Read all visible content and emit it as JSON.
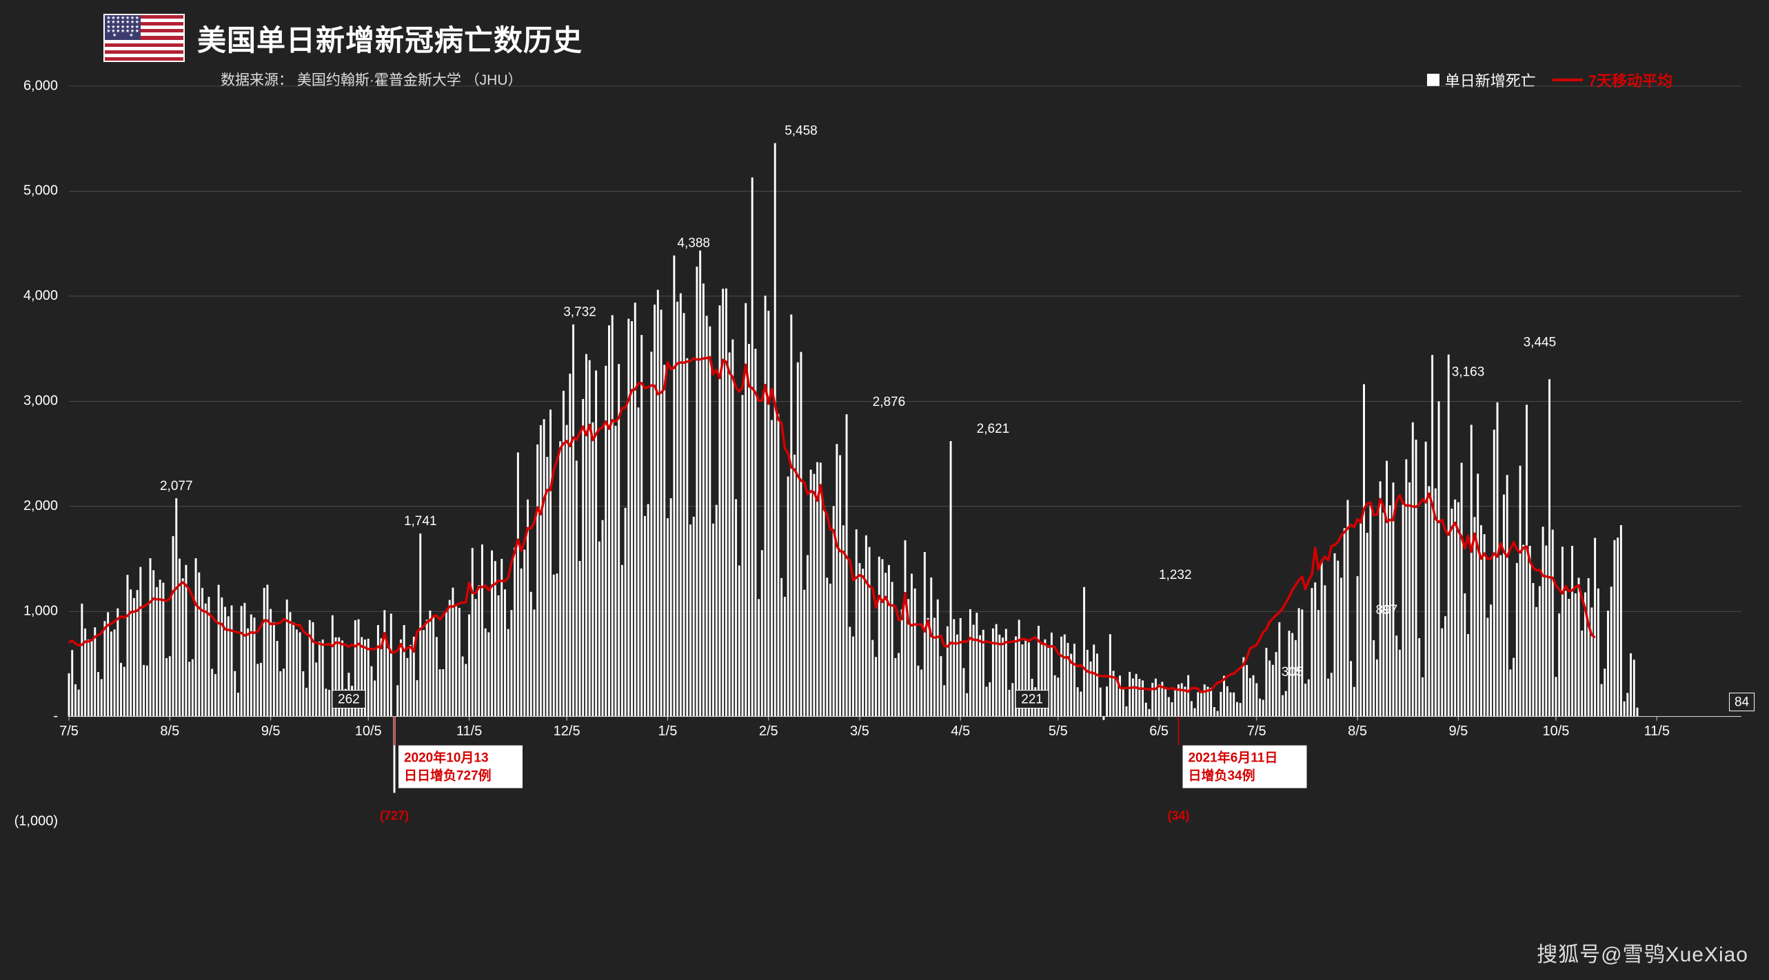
{
  "title": "美国单日新增新冠病亡数历史",
  "source_label": "数据来源：",
  "source_value": "美国约翰斯·霍普金斯大学 （JHU）",
  "legend": {
    "bar_label": "单日新增死亡",
    "line_label": "7天移动平均"
  },
  "chart": {
    "type": "bar+line",
    "background_color": "#222222",
    "bar_color": "#ffffff",
    "line_color": "#d40000",
    "line_width": 3.5,
    "grid_color": "#666666",
    "text_color": "#ffffff",
    "ylim": [
      -1000,
      6000
    ],
    "y_ticks": [
      -1000,
      0,
      1000,
      2000,
      3000,
      4000,
      5000,
      6000
    ],
    "y_tick_labels": [
      "(1,000)",
      "-",
      "1,000",
      "2,000",
      "3,000",
      "4,000",
      "5,000",
      "6,000"
    ],
    "x_tick_indices": [
      0,
      31,
      62,
      92,
      123,
      153,
      184,
      215,
      243,
      274,
      304,
      335,
      365,
      396,
      427,
      457,
      488
    ],
    "x_tick_labels": [
      "7/5",
      "8/5",
      "9/5",
      "10/5",
      "11/5",
      "12/5",
      "1/5",
      "2/5",
      "3/5",
      "4/5",
      "5/5",
      "6/5",
      "7/5",
      "8/5",
      "9/5",
      "10/5",
      "11/5"
    ],
    "n_points": 515,
    "peak_labels": [
      {
        "idx": 33,
        "value": 2077,
        "text": "2,077",
        "anchor": "above"
      },
      {
        "idx": 86,
        "value": 262,
        "text": "262",
        "anchor": "boxed-below"
      },
      {
        "idx": 108,
        "value": 1741,
        "text": "1,741",
        "anchor": "above"
      },
      {
        "idx": 157,
        "value": 3732,
        "text": "3,732",
        "anchor": "above"
      },
      {
        "idx": 192,
        "value": 4388,
        "text": "4,388",
        "anchor": "above"
      },
      {
        "idx": 225,
        "value": 5458,
        "text": "5,458",
        "anchor": "above"
      },
      {
        "idx": 252,
        "value": 2876,
        "text": "2,876",
        "anchor": "above"
      },
      {
        "idx": 284,
        "value": 2621,
        "text": "2,621",
        "anchor": "above"
      },
      {
        "idx": 296,
        "value": 221,
        "text": "221",
        "anchor": "boxed-below"
      },
      {
        "idx": 340,
        "value": 1232,
        "text": "1,232",
        "anchor": "above"
      },
      {
        "idx": 376,
        "value": 305,
        "text": "305",
        "anchor": "above-small"
      },
      {
        "idx": 405,
        "value": 897,
        "text": "897",
        "anchor": "above-small"
      },
      {
        "idx": 430,
        "value": 3163,
        "text": "3,163",
        "anchor": "above"
      },
      {
        "idx": 452,
        "value": 3445,
        "text": "3,445",
        "anchor": "above"
      },
      {
        "idx": 512,
        "value": 84,
        "text": "84",
        "anchor": "boxed-right"
      }
    ],
    "negative_labels": [
      {
        "idx": 100,
        "value": -727,
        "text": "(727)"
      },
      {
        "idx": 341,
        "value": -34,
        "text": "(34)"
      }
    ],
    "callouts": [
      {
        "idx": 100,
        "lines": [
          "2020年10月13",
          "日日增负727例"
        ]
      },
      {
        "idx": 341,
        "lines": [
          "2021年6月11日",
          "日增负34例"
        ]
      }
    ],
    "bars": [
      411,
      632,
      306,
      256,
      1074,
      837,
      732,
      737,
      848,
      423,
      355,
      908,
      992,
      808,
      828,
      1029,
      510,
      472,
      1348,
      1209,
      1127,
      1203,
      1423,
      490,
      485,
      1506,
      1392,
      1231,
      1302,
      1273,
      555,
      573,
      1717,
      2077,
      1502,
      1315,
      1442,
      520,
      545,
      1506,
      1371,
      1223,
      1075,
      1138,
      453,
      403,
      1253,
      1133,
      1043,
      953,
      1057,
      432,
      226,
      1051,
      1081,
      838,
      971,
      941,
      500,
      510,
      1224,
      1254,
      1023,
      897,
      719,
      430,
      455,
      1113,
      993,
      896,
      827,
      801,
      430,
      273,
      917,
      897,
      513,
      712,
      732,
      264,
      253,
      963,
      753,
      753,
      723,
      262,
      416,
      292,
      916,
      925,
      755,
      732,
      740,
      478,
      342,
      870,
      743,
      1012,
      649,
      979,
      -727,
      297,
      733,
      870,
      556,
      681,
      759,
      345,
      1741,
      822,
      921,
      1008,
      956,
      756,
      449,
      450,
      1002,
      1109,
      1226,
      1050,
      1033,
      571,
      500,
      972,
      1604,
      1118,
      1248,
      1637,
      838,
      801,
      1580,
      1479,
      1153,
      1500,
      1210,
      832,
      1013,
      1608,
      2513,
      1408,
      1588,
      2065,
      1186,
      1018,
      2589,
      2773,
      2830,
      2471,
      2921,
      1350,
      1361,
      2619,
      3100,
      2775,
      3263,
      3732,
      2435,
      1480,
      3022,
      3450,
      3392,
      2800,
      3293,
      1666,
      1869,
      3338,
      3723,
      3820,
      2767,
      3355,
      1442,
      1986,
      3786,
      3763,
      3939,
      2941,
      3631,
      1908,
      2022,
      3472,
      3920,
      4061,
      3872,
      3347,
      1887,
      2077,
      4388,
      3948,
      4028,
      3840,
      3410,
      1827,
      1901,
      4282,
      4435,
      4121,
      3814,
      3713,
      1836,
      2014,
      3913,
      4072,
      4074,
      3465,
      3589,
      2068,
      1437,
      3060,
      3935,
      3546,
      5131,
      3500,
      1117,
      1583,
      4006,
      3862,
      2821,
      5458,
      2879,
      1317,
      1139,
      2284,
      3826,
      2492,
      3371,
      3470,
      1206,
      1536,
      2349,
      2309,
      2421,
      2416,
      2003,
      1321,
      1264,
      2003,
      2593,
      2487,
      1819,
      2876,
      853,
      761,
      1781,
      1460,
      1406,
      1724,
      1613,
      728,
      566,
      1521,
      1497,
      1367,
      1441,
      1281,
      555,
      604,
      1020,
      1677,
      1117,
      1359,
      1218,
      484,
      446,
      1565,
      937,
      1323,
      939,
      1114,
      574,
      297,
      858,
      2621,
      926,
      780,
      936,
      460,
      221,
      1021,
      873,
      987,
      773,
      825,
      283,
      326,
      838,
      879,
      779,
      751,
      833,
      254,
      318,
      762,
      920,
      686,
      721,
      705,
      359,
      278,
      863,
      698,
      733,
      678,
      798,
      392,
      370,
      760,
      781,
      700,
      597,
      692,
      278,
      237,
      1232,
      634,
      523,
      684,
      598,
      275,
      -34,
      286,
      783,
      434,
      348,
      389,
      262,
      96,
      424,
      361,
      405,
      357,
      343,
      131,
      70,
      320,
      360,
      305,
      329,
      270,
      184,
      135,
      253,
      305,
      316,
      283,
      393,
      146,
      79,
      231,
      238,
      305,
      283,
      272,
      89,
      52,
      234,
      387,
      287,
      229,
      228,
      137,
      128,
      564,
      490,
      365,
      392,
      316,
      170,
      158,
      653,
      532,
      491,
      613,
      897,
      202,
      242,
      816,
      794,
      726,
      1031,
      1018,
      312,
      353,
      1222,
      1276,
      1013,
      1489,
      1248,
      360,
      415,
      1553,
      1483,
      1320,
      1792,
      2061,
      527,
      281,
      1335,
      1853,
      3163,
      1748,
      2009,
      726,
      543,
      2238,
      1941,
      2433,
      2009,
      2227,
      770,
      635,
      2016,
      2448,
      2228,
      2800,
      2635,
      745,
      372,
      2616,
      2192,
      3441,
      2171,
      2999,
      839,
      954,
      3445,
      1978,
      2065,
      2039,
      2415,
      1172,
      784,
      2776,
      1898,
      2311,
      1820,
      1735,
      939,
      1065,
      2730,
      2990,
      1535,
      2112,
      2299,
      447,
      558,
      1461,
      2387,
      1634,
      2967,
      1624,
      1270,
      1041,
      1240,
      1806,
      1627,
      3210,
      1778,
      376,
      980,
      1616,
      1196,
      1119,
      1624,
      1172,
      1320,
      818,
      1181,
      1316,
      1037,
      1700,
      1218,
      308,
      455,
      1007,
      1235,
      1679,
      1703,
      1821,
      143,
      224,
      601,
      540,
      84
    ],
    "moving_avg": [
      704,
      722,
      694,
      677,
      683,
      712,
      714,
      727,
      758,
      775,
      792,
      841,
      870,
      884,
      904,
      930,
      951,
      942,
      959,
      994,
      997,
      1007,
      1037,
      1046,
      1067,
      1088,
      1122,
      1115,
      1114,
      1108,
      1100,
      1122,
      1189,
      1220,
      1254,
      1276,
      1248,
      1209,
      1140,
      1063,
      1033,
      1007,
      997,
      974,
      950,
      907,
      887,
      880,
      829,
      824,
      817,
      807,
      800,
      794,
      770,
      782,
      801,
      795,
      810,
      864,
      915,
      913,
      880,
      881,
      887,
      891,
      926,
      911,
      896,
      882,
      869,
      870,
      812,
      784,
      770,
      715,
      698,
      694,
      685,
      683,
      689,
      669,
      703,
      702,
      687,
      683,
      664,
      684,
      667,
      692,
      666,
      657,
      641,
      643,
      642,
      666,
      650,
      793,
      677,
      609,
      611,
      628,
      689,
      623,
      653,
      662,
      618,
      806,
      831,
      857,
      901,
      914,
      955,
      961,
      922,
      964,
      1007,
      1047,
      1046,
      1060,
      1076,
      1084,
      1086,
      1273,
      1177,
      1173,
      1232,
      1232,
      1246,
      1200,
      1246,
      1261,
      1293,
      1290,
      1289,
      1319,
      1467,
      1565,
      1683,
      1578,
      1662,
      1794,
      1789,
      1844,
      1990,
      1924,
      2070,
      2156,
      2154,
      2347,
      2439,
      2552,
      2597,
      2621,
      2574,
      2657,
      2634,
      2697,
      2759,
      2677,
      2776,
      2631,
      2686,
      2738,
      2751,
      2808,
      2739,
      2820,
      2807,
      2843,
      2936,
      2936,
      3016,
      3107,
      3112,
      3171,
      3173,
      3125,
      3133,
      3152,
      3148,
      3068,
      3083,
      3118,
      3370,
      3307,
      3319,
      3361,
      3370,
      3367,
      3378,
      3384,
      3409,
      3398,
      3399,
      3408,
      3412,
      3420,
      3258,
      3299,
      3221,
      3394,
      3376,
      3273,
      3230,
      3132,
      3093,
      3127,
      3348,
      3143,
      3125,
      3083,
      3007,
      3007,
      3155,
      2977,
      3117,
      2969,
      2828,
      2791,
      2553,
      2505,
      2370,
      2351,
      2289,
      2245,
      2228,
      2117,
      2145,
      2134,
      2054,
      2202,
      1977,
      1924,
      1780,
      1774,
      1622,
      1573,
      1568,
      1515,
      1485,
      1298,
      1321,
      1345,
      1333,
      1280,
      1237,
      1221,
      1037,
      1148,
      1091,
      1138,
      1063,
      1057,
      1050,
      916,
      928,
      1174,
      887,
      867,
      876,
      875,
      874,
      809,
      913,
      765,
      750,
      757,
      768,
      670,
      666,
      702,
      696,
      695,
      706,
      714,
      711,
      747,
      730,
      728,
      717,
      705,
      714,
      705,
      698,
      695,
      688,
      689,
      708,
      706,
      715,
      714,
      725,
      740,
      733,
      720,
      740,
      754,
      719,
      693,
      688,
      663,
      668,
      661,
      601,
      577,
      560,
      564,
      514,
      498,
      476,
      490,
      457,
      429,
      418,
      412,
      395,
      385,
      382,
      384,
      379,
      373,
      361,
      274,
      267,
      271,
      272,
      276,
      275,
      265,
      264,
      263,
      256,
      263,
      261,
      292,
      280,
      271,
      261,
      272,
      258,
      255,
      252,
      248,
      236,
      269,
      271,
      263,
      232,
      237,
      246,
      253,
      288,
      323,
      329,
      353,
      382,
      400,
      407,
      437,
      460,
      494,
      558,
      648,
      664,
      680,
      738,
      801,
      829,
      899,
      932,
      965,
      990,
      1029,
      1083,
      1138,
      1205,
      1251,
      1299,
      1329,
      1210,
      1297,
      1350,
      1604,
      1399,
      1479,
      1521,
      1488,
      1622,
      1631,
      1660,
      1723,
      1756,
      1791,
      1825,
      1802,
      1878,
      1847,
      1976,
      2026,
      2036,
      1917,
      1921,
      2069,
      1999,
      1851,
      1871,
      1869,
      2048,
      2106,
      2030,
      2007,
      2008,
      1999,
      1995,
      2019,
      2066,
      2038,
      2121,
      2017,
      1881,
      1849,
      1872,
      1769,
      1730,
      1797,
      1844,
      1765,
      1709,
      1601,
      1720,
      1567,
      1740,
      1605,
      1502,
      1552,
      1498,
      1503,
      1552,
      1521,
      1649,
      1565,
      1522,
      1595,
      1659,
      1591,
      1561,
      1605,
      1617,
      1476,
      1418,
      1390,
      1396,
      1338,
      1333,
      1325,
      1320,
      1244,
      1210,
      1171,
      1242,
      1192,
      1199,
      1234,
      1248,
      1128,
      1028,
      870,
      775,
      751
    ]
  },
  "watermark": "搜狐号@雪鸮XueXiao"
}
